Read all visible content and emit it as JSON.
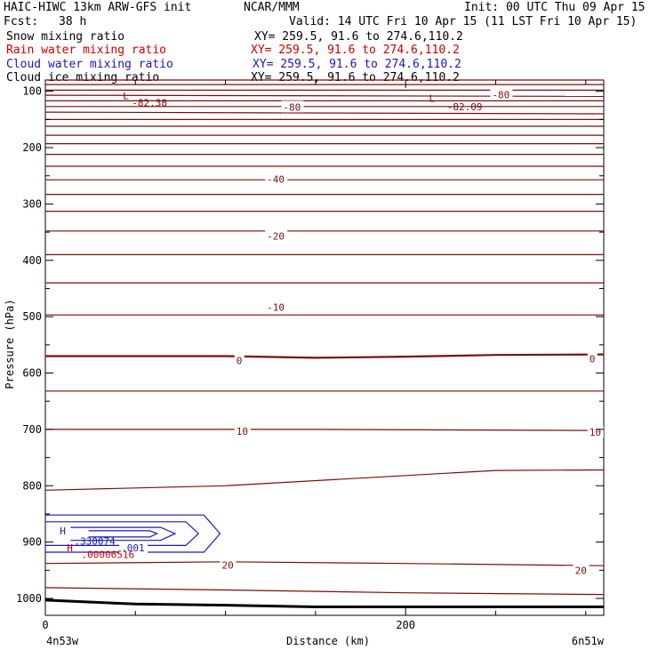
{
  "header": {
    "title": "HAIC-HIWC 13km ARW-GFS init",
    "org": "NCAR/MMM",
    "init": "Init: 00 UTC Thu 09 Apr 15",
    "fcst_label": "Fcst:",
    "fcst_value": "38 h",
    "valid": "Valid: 14 UTC Fri 10 Apr 15 (11 LST Fri 10 Apr 15)"
  },
  "legend": [
    {
      "name": "Snow mixing ratio",
      "xy": "XY= 259.5, 91.6 to 274.6,110.2",
      "color": "#000000"
    },
    {
      "name": "Rain water mixing ratio",
      "xy": "XY= 259.5, 91.6 to 274.6,110.2",
      "color": "#cc0000"
    },
    {
      "name": "Cloud water mixing ratio",
      "xy": "XY= 259.5, 91.6 to 274.6,110.2",
      "color": "#1a1ab5"
    },
    {
      "name": "Cloud ice mixing ratio",
      "xy": "XY= 259.5, 91.6 to 274.6,110.2",
      "color": "#000000"
    }
  ],
  "chart_data": {
    "type": "contour",
    "xlabel": "Distance (km)",
    "ylabel": "Pressure (hPa)",
    "xlim": [
      0,
      310
    ],
    "ylim": [
      1030,
      80
    ],
    "x_ticks": [
      {
        "v": 0,
        "label": "0"
      },
      {
        "v": 200,
        "label": "200"
      }
    ],
    "x_minor_ticks": [
      50,
      100,
      150,
      250,
      300
    ],
    "y_ticks": [
      {
        "v": 100,
        "label": "100"
      },
      {
        "v": 200,
        "label": "200"
      },
      {
        "v": 300,
        "label": "300"
      },
      {
        "v": 400,
        "label": "400"
      },
      {
        "v": 500,
        "label": "500"
      },
      {
        "v": 600,
        "label": "600"
      },
      {
        "v": 700,
        "label": "700"
      },
      {
        "v": 800,
        "label": "800"
      },
      {
        "v": 900,
        "label": "900"
      },
      {
        "v": 1000,
        "label": "1000"
      }
    ],
    "y_minor_ticks": [
      150,
      250,
      350,
      450,
      550,
      650,
      750,
      850,
      950
    ],
    "x_end_labels": {
      "left": "4n53w",
      "right": "6n51w"
    },
    "contour_color": "#7a0e0e",
    "temperature_isotherms": [
      {
        "x": [
          0,
          310
        ],
        "p": [
          80,
          80
        ]
      },
      {
        "x": [
          0,
          310
        ],
        "p": [
          88,
          88
        ]
      },
      {
        "x": [
          0,
          310
        ],
        "p": [
          98,
          98
        ]
      },
      {
        "x": [
          0,
          310
        ],
        "p": [
          107,
          109
        ]
      },
      {
        "x": [
          0,
          310
        ],
        "p": [
          117,
          117
        ]
      },
      {
        "x": [
          0,
          310
        ],
        "p": [
          127,
          127
        ]
      },
      {
        "x": [
          0,
          310
        ],
        "p": [
          137,
          140
        ]
      },
      {
        "x": [
          0,
          310
        ],
        "p": [
          150,
          150
        ]
      },
      {
        "x": [
          0,
          310
        ],
        "p": [
          162,
          162
        ]
      },
      {
        "x": [
          0,
          310
        ],
        "p": [
          178,
          178
        ]
      },
      {
        "x": [
          0,
          310
        ],
        "p": [
          193,
          193
        ]
      },
      {
        "x": [
          0,
          310
        ],
        "p": [
          212,
          212
        ]
      },
      {
        "x": [
          0,
          310
        ],
        "p": [
          233,
          233
        ]
      },
      {
        "x": [
          0,
          310
        ],
        "p": [
          257,
          257
        ]
      },
      {
        "x": [
          0,
          310
        ],
        "p": [
          283,
          283
        ]
      },
      {
        "x": [
          0,
          310
        ],
        "p": [
          313,
          313
        ]
      },
      {
        "x": [
          0,
          310
        ],
        "p": [
          348,
          348
        ]
      },
      {
        "x": [
          0,
          310
        ],
        "p": [
          390,
          390
        ]
      },
      {
        "x": [
          0,
          310
        ],
        "p": [
          440,
          440
        ]
      },
      {
        "x": [
          0,
          310
        ],
        "p": [
          497,
          497
        ]
      },
      {
        "x": [
          0,
          100,
          150,
          200,
          250,
          310
        ],
        "p": [
          570,
          570,
          573,
          571,
          568,
          567
        ],
        "bold": true
      },
      {
        "x": [
          0,
          310
        ],
        "p": [
          632,
          632
        ]
      },
      {
        "x": [
          0,
          150,
          310
        ],
        "p": [
          700,
          700,
          702
        ]
      },
      {
        "x": [
          0,
          100,
          200,
          250,
          310
        ],
        "p": [
          808,
          800,
          782,
          773,
          772
        ]
      },
      {
        "x": [
          0,
          100,
          200,
          310
        ],
        "p": [
          938,
          935,
          938,
          942
        ]
      },
      {
        "x": [
          0,
          100,
          200,
          310
        ],
        "p": [
          981,
          985,
          990,
          993
        ]
      },
      {
        "x": [
          0,
          50,
          100,
          150,
          310
        ],
        "p": [
          1003,
          1010,
          1012,
          1015,
          1015
        ],
        "heavy": true
      }
    ],
    "cloud_water_contours": {
      "color": "#1a1ab5",
      "lines": [
        {
          "x": [
            0,
            88,
            97,
            88,
            0
          ],
          "p": [
            852,
            852,
            885,
            918,
            918
          ]
        },
        {
          "x": [
            0,
            78,
            85,
            78,
            0
          ],
          "p": [
            864,
            864,
            885,
            906,
            906
          ]
        },
        {
          "x": [
            14,
            64,
            72,
            64,
            14
          ],
          "p": [
            874,
            874,
            885,
            897,
            897
          ]
        },
        {
          "x": [
            24,
            58,
            62,
            58,
            24
          ],
          "p": [
            880,
            880,
            885,
            891,
            891
          ]
        }
      ]
    },
    "labels": [
      {
        "x": 43,
        "p": 108,
        "text": "L",
        "kind": "minmax",
        "color": "contour"
      },
      {
        "x": 48,
        "p": 120,
        "text": "-82.38",
        "kind": "value",
        "color": "contour"
      },
      {
        "x": 132,
        "p": 128,
        "text": "-80",
        "kind": "contour",
        "color": "contour"
      },
      {
        "x": 213,
        "p": 112,
        "text": "L",
        "kind": "minmax",
        "color": "contour"
      },
      {
        "x": 223,
        "p": 127,
        "text": "-82.09",
        "kind": "value",
        "color": "contour"
      },
      {
        "x": 248,
        "p": 106,
        "text": "-80",
        "kind": "contour",
        "color": "contour"
      },
      {
        "x": 123,
        "p": 256,
        "text": "-40",
        "kind": "contour",
        "color": "contour"
      },
      {
        "x": 123,
        "p": 357,
        "text": "-20",
        "kind": "contour",
        "color": "contour"
      },
      {
        "x": 123,
        "p": 483,
        "text": "-10",
        "kind": "contour",
        "color": "contour"
      },
      {
        "x": 106,
        "p": 578,
        "text": "0",
        "kind": "contour",
        "color": "contour"
      },
      {
        "x": 302,
        "p": 575,
        "text": "0",
        "kind": "contour",
        "color": "contour"
      },
      {
        "x": 106,
        "p": 703,
        "text": "10",
        "kind": "contour",
        "color": "contour"
      },
      {
        "x": 302,
        "p": 705,
        "text": "10",
        "kind": "contour",
        "color": "contour"
      },
      {
        "x": 98,
        "p": 941,
        "text": "20",
        "kind": "contour",
        "color": "contour"
      },
      {
        "x": 294,
        "p": 950,
        "text": "20",
        "kind": "contour",
        "color": "contour"
      },
      {
        "x": 8,
        "p": 880,
        "text": "H",
        "kind": "minmax",
        "color": "blue"
      },
      {
        "x": 16,
        "p": 898,
        "text": ".330074",
        "kind": "value",
        "color": "blue"
      },
      {
        "x": 42,
        "p": 910,
        "text": ".001",
        "kind": "contour",
        "color": "blue"
      },
      {
        "x": 12,
        "p": 910,
        "text": "H",
        "kind": "minmax",
        "color": "red"
      },
      {
        "x": 20,
        "p": 922,
        "text": ".00006516",
        "kind": "value",
        "color": "red"
      }
    ]
  }
}
